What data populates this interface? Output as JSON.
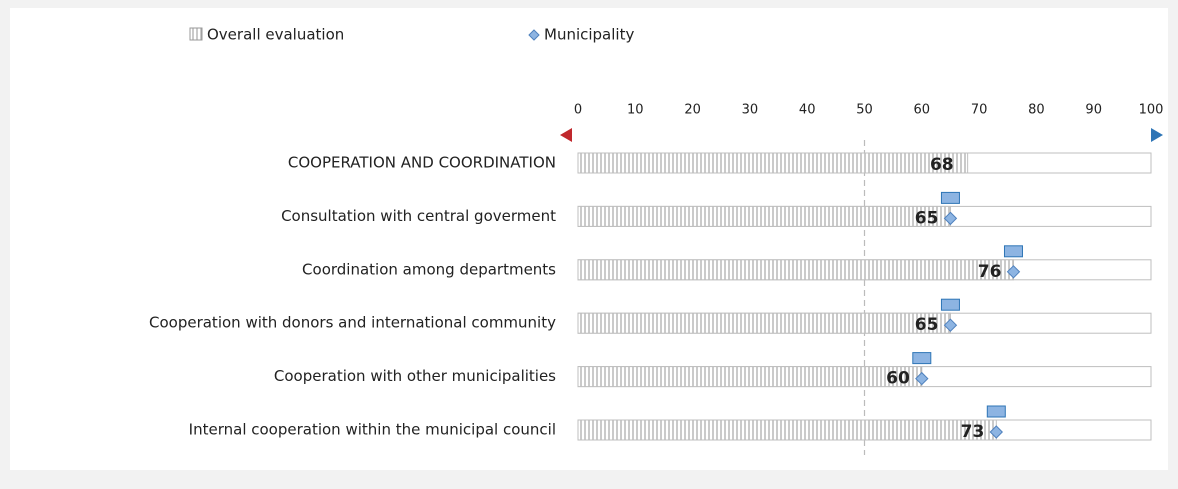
{
  "chart_data": {
    "type": "bar",
    "orientation": "horizontal",
    "categories": [
      "COOPERATION AND COORDINATION",
      "Consultation with central goverment",
      "Coordination among departments",
      "Cooperation with donors and international community",
      "Cooperation with other municipalities",
      "Internal cooperation within the municipal council"
    ],
    "series": [
      {
        "name": "Overall evaluation",
        "color": "#a6a6a6",
        "values": [
          68,
          65,
          76,
          65,
          60,
          73
        ]
      },
      {
        "name": "Municipality",
        "color": "#8db4e2",
        "values": [
          null,
          65,
          76,
          65,
          60,
          73
        ]
      }
    ],
    "xlim": [
      0,
      100
    ],
    "xticks": [
      0,
      10,
      20,
      30,
      40,
      50,
      60,
      70,
      80,
      90,
      100
    ],
    "reference_line": 50,
    "legend": "top"
  }
}
